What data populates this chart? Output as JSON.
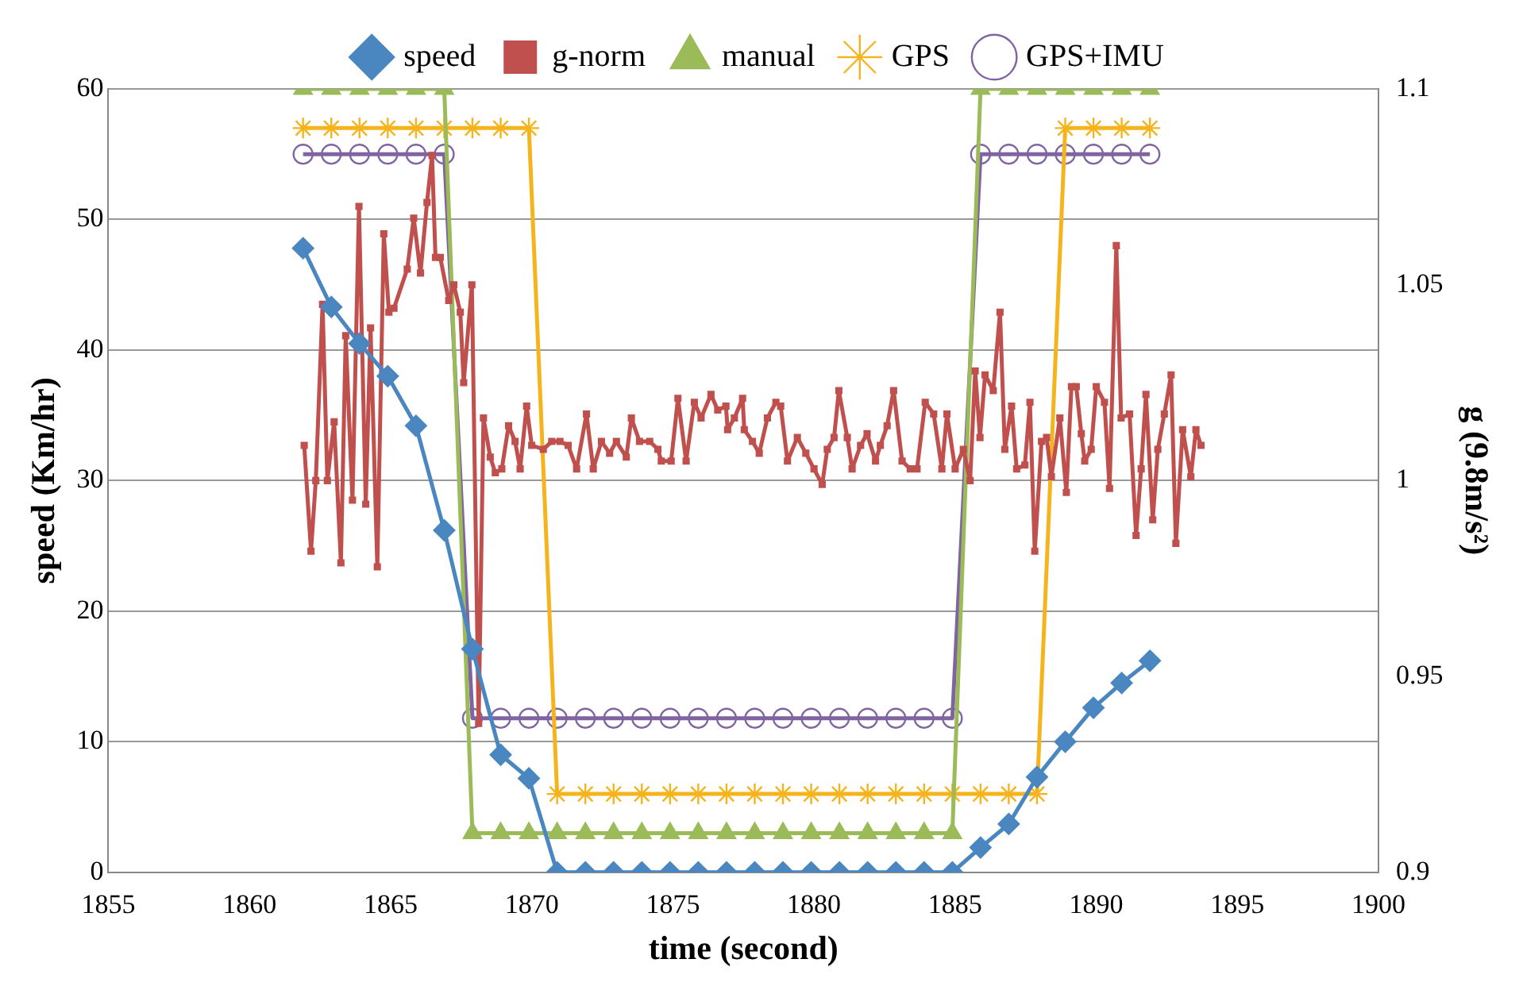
{
  "chart_data": {
    "type": "line",
    "xlabel": "time (second)",
    "ylabel": "speed (Km/hr)",
    "y2label": "g (9.8m/s²)",
    "xlim": [
      1855,
      1900
    ],
    "xticks": [
      1855,
      1860,
      1865,
      1870,
      1875,
      1880,
      1885,
      1890,
      1895,
      1900
    ],
    "ylim": [
      0,
      60
    ],
    "yticks": [
      0,
      10,
      20,
      30,
      40,
      50,
      60
    ],
    "y2lim": [
      0.9,
      1.1
    ],
    "y2ticks": [
      0.9,
      0.95,
      1,
      1.05,
      1.1
    ],
    "grid": "y",
    "legend": "top",
    "line_style": "solid",
    "series": [
      {
        "name": "speed",
        "color": "#4a86c0",
        "marker": "diamond",
        "x": [
          1861.9,
          1862.9,
          1863.9,
          1864.9,
          1865.9,
          1866.9,
          1867.9,
          1868.9,
          1869.9,
          1870.9,
          1871.9,
          1872.9,
          1873.9,
          1874.9,
          1875.9,
          1876.9,
          1877.9,
          1878.9,
          1879.9,
          1880.9,
          1881.9,
          1882.9,
          1883.9,
          1884.9,
          1885.9,
          1886.9,
          1887.9,
          1888.9,
          1889.9,
          1890.9,
          1891.9
        ],
        "values": [
          47.8,
          43.3,
          40.5,
          38,
          34.2,
          26.2,
          17.1,
          9,
          7.2,
          0,
          0,
          0,
          0,
          0,
          0,
          0,
          0,
          0,
          0,
          0,
          0,
          0,
          0,
          0,
          1.9,
          3.7,
          7.3,
          10,
          12.6,
          14.5,
          16.2
        ]
      },
      {
        "name": "g-norm",
        "color": "#c0504d",
        "marker": "square",
        "axis": "y2",
        "x": [
          1861.94,
          1862.18,
          1862.35,
          1862.59,
          1862.76,
          1863.0,
          1863.24,
          1863.41,
          1863.65,
          1863.88,
          1864.12,
          1864.29,
          1864.53,
          1864.76,
          1864.94,
          1865.12,
          1865.59,
          1865.82,
          1866.06,
          1866.29,
          1866.47,
          1866.59,
          1866.76,
          1867.06,
          1867.24,
          1867.47,
          1867.59,
          1867.88,
          1868.12,
          1868.29,
          1868.53,
          1868.71,
          1868.94,
          1869.18,
          1869.41,
          1869.59,
          1869.82,
          1870.0,
          1870.41,
          1870.71,
          1871.0,
          1871.29,
          1871.59,
          1871.94,
          1872.18,
          1872.47,
          1872.76,
          1873.0,
          1873.35,
          1873.53,
          1873.82,
          1874.18,
          1874.47,
          1874.59,
          1874.94,
          1875.18,
          1875.47,
          1875.76,
          1876.0,
          1876.35,
          1876.59,
          1876.88,
          1876.94,
          1877.18,
          1877.47,
          1877.53,
          1877.82,
          1878.06,
          1878.35,
          1878.65,
          1878.82,
          1879.06,
          1879.41,
          1879.71,
          1880.0,
          1880.29,
          1880.47,
          1880.71,
          1880.88,
          1881.18,
          1881.35,
          1881.65,
          1881.88,
          1882.18,
          1882.35,
          1882.59,
          1882.82,
          1883.12,
          1883.41,
          1883.65,
          1883.94,
          1884.24,
          1884.53,
          1884.71,
          1885.0,
          1885.29,
          1885.53,
          1885.71,
          1885.88,
          1886.06,
          1886.35,
          1886.59,
          1886.76,
          1887.0,
          1887.18,
          1887.47,
          1887.65,
          1887.82,
          1888.06,
          1888.24,
          1888.41,
          1888.71,
          1888.94,
          1889.12,
          1889.29,
          1889.47,
          1889.59,
          1889.82,
          1890.0,
          1890.29,
          1890.47,
          1890.71,
          1890.88,
          1891.18,
          1891.41,
          1891.59,
          1891.76,
          1892.0,
          1892.18,
          1892.41,
          1892.65,
          1892.82,
          1893.06,
          1893.35,
          1893.53,
          1893.71
        ],
        "values": [
          1.009,
          0.982,
          1.0,
          1.045,
          1.0,
          1.015,
          0.979,
          1.037,
          0.995,
          1.07,
          0.994,
          1.039,
          0.978,
          1.063,
          1.043,
          1.044,
          1.054,
          1.067,
          1.053,
          1.071,
          1.083,
          1.057,
          1.057,
          1.046,
          1.05,
          1.043,
          1.025,
          1.05,
          0.938,
          1.016,
          1.006,
          1.002,
          1.003,
          1.014,
          1.01,
          1.003,
          1.019,
          1.009,
          1.008,
          1.01,
          1.01,
          1.009,
          1.003,
          1.017,
          1.003,
          1.01,
          1.007,
          1.01,
          1.006,
          1.016,
          1.01,
          1.01,
          1.008,
          1.005,
          1.005,
          1.021,
          1.005,
          1.02,
          1.016,
          1.022,
          1.018,
          1.019,
          1.013,
          1.016,
          1.021,
          1.013,
          1.01,
          1.007,
          1.016,
          1.02,
          1.019,
          1.005,
          1.011,
          1.007,
          1.003,
          0.999,
          1.008,
          1.011,
          1.023,
          1.011,
          1.003,
          1.009,
          1.012,
          1.005,
          1.009,
          1.014,
          1.023,
          1.005,
          1.003,
          1.003,
          1.02,
          1.017,
          1.003,
          1.017,
          1.003,
          1.008,
          1.0,
          1.028,
          1.011,
          1.027,
          1.023,
          1.043,
          1.008,
          1.019,
          1.003,
          1.004,
          1.02,
          0.982,
          1.01,
          1.011,
          1.001,
          1.016,
          0.997,
          1.024,
          1.024,
          1.012,
          1.005,
          1.008,
          1.024,
          1.02,
          0.998,
          1.06,
          1.016,
          1.017,
          0.986,
          1.003,
          1.022,
          0.99,
          1.008,
          1.017,
          1.027,
          0.984,
          1.013,
          1.001,
          1.013,
          1.009
        ]
      },
      {
        "name": "manual",
        "color": "#9bbb59",
        "marker": "triangle",
        "x": [
          1861.9,
          1862.9,
          1863.9,
          1864.9,
          1865.9,
          1866.9,
          1867.9,
          1868.9,
          1869.9,
          1870.9,
          1871.9,
          1872.9,
          1873.9,
          1874.9,
          1875.9,
          1876.9,
          1877.9,
          1878.9,
          1879.9,
          1880.9,
          1881.9,
          1882.9,
          1883.9,
          1884.9,
          1885.9,
          1886.9,
          1887.9,
          1888.9,
          1889.9,
          1890.9,
          1891.9
        ],
        "values": [
          60,
          60,
          60,
          60,
          60,
          60,
          3,
          3,
          3,
          3,
          3,
          3,
          3,
          3,
          3,
          3,
          3,
          3,
          3,
          3,
          3,
          3,
          3,
          3,
          60,
          60,
          60,
          60,
          60,
          60,
          60
        ]
      },
      {
        "name": "GPS",
        "color": "#f5b31c",
        "marker": "cross",
        "x": [
          1861.9,
          1862.9,
          1863.9,
          1864.9,
          1865.9,
          1866.9,
          1867.9,
          1868.9,
          1869.9,
          1870.9,
          1871.9,
          1872.9,
          1873.9,
          1874.9,
          1875.9,
          1876.9,
          1877.9,
          1878.9,
          1879.9,
          1880.9,
          1881.9,
          1882.9,
          1883.9,
          1884.9,
          1885.9,
          1886.9,
          1887.9,
          1888.9,
          1889.9,
          1890.9,
          1891.9
        ],
        "values": [
          57,
          57,
          57,
          57,
          57,
          57,
          57,
          57,
          57,
          6,
          6,
          6,
          6,
          6,
          6,
          6,
          6,
          6,
          6,
          6,
          6,
          6,
          6,
          6,
          6,
          6,
          6,
          57,
          57,
          57,
          57
        ]
      },
      {
        "name": "GPS+IMU",
        "color": "#8064a2",
        "marker": "circle",
        "x": [
          1861.9,
          1862.9,
          1863.9,
          1864.9,
          1865.9,
          1866.9,
          1867.9,
          1868.9,
          1869.9,
          1870.9,
          1871.9,
          1872.9,
          1873.9,
          1874.9,
          1875.9,
          1876.9,
          1877.9,
          1878.9,
          1879.9,
          1880.9,
          1881.9,
          1882.9,
          1883.9,
          1884.9,
          1885.9,
          1886.9,
          1887.9,
          1888.9,
          1889.9,
          1890.9,
          1891.9
        ],
        "values": [
          55,
          55,
          55,
          55,
          55,
          55,
          11.8,
          11.8,
          11.8,
          11.8,
          11.8,
          11.8,
          11.8,
          11.8,
          11.8,
          11.8,
          11.8,
          11.8,
          11.8,
          11.8,
          11.8,
          11.8,
          11.8,
          11.8,
          55,
          55,
          55,
          55,
          55,
          55,
          55
        ]
      }
    ]
  }
}
